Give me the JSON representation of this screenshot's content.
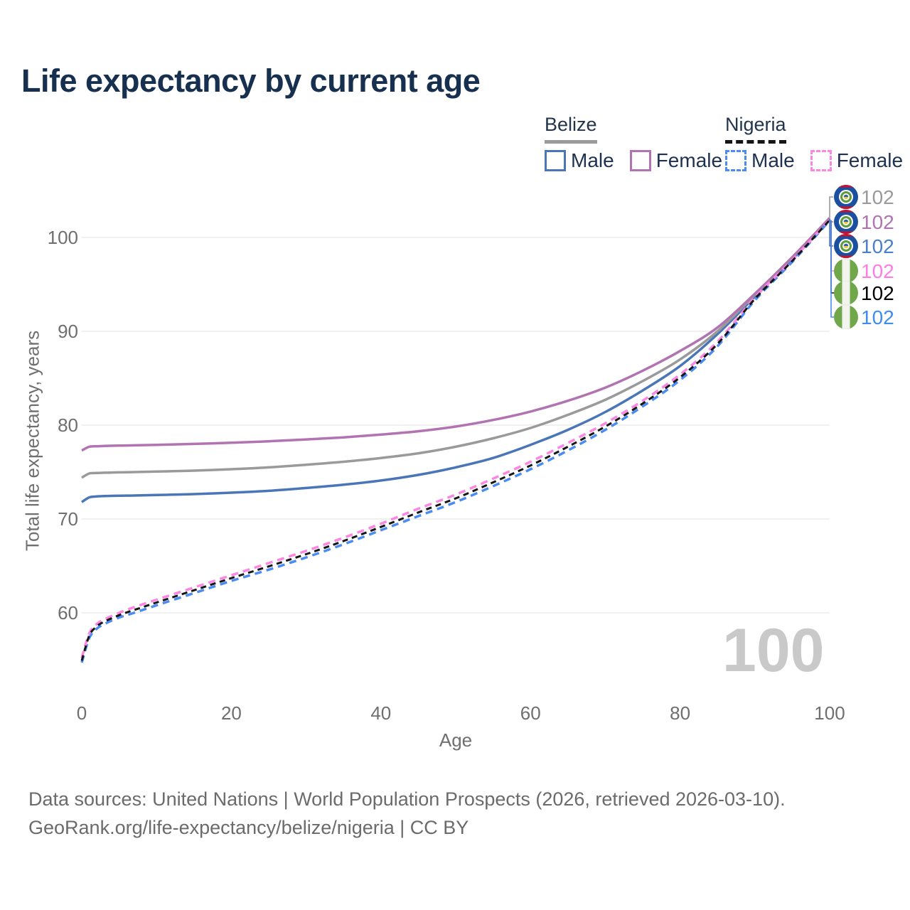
{
  "title": "Life expectancy by current age",
  "legend": {
    "groups": [
      {
        "country": "Belize",
        "line_style": "solid",
        "line_color": "#9a9a9a",
        "items": [
          {
            "label": "Male",
            "color": "#4a76b8",
            "dashed": false
          },
          {
            "label": "Female",
            "color": "#b173b1",
            "dashed": false
          }
        ]
      },
      {
        "country": "Nigeria",
        "line_style": "dashed",
        "line_color": "#151515",
        "items": [
          {
            "label": "Male",
            "color": "#4b8bf4",
            "dashed": true
          },
          {
            "label": "Female",
            "color": "#fb87e3",
            "dashed": true
          }
        ]
      }
    ]
  },
  "chart_data": {
    "type": "line",
    "title": "Life expectancy by current age",
    "xlabel": "Age",
    "ylabel": "Total life expectancy, years",
    "xlim": [
      0,
      100
    ],
    "ylim": [
      54,
      103
    ],
    "x_ticks": [
      0,
      20,
      40,
      60,
      80,
      100
    ],
    "y_ticks": [
      60,
      70,
      80,
      90,
      100
    ],
    "grid": "horizontal",
    "legend_position": "top-right",
    "hover_age_label": "100",
    "series": [
      {
        "name": "Belize Male",
        "country": "Belize",
        "sex": "male",
        "color": "#4a76b8",
        "dash": "solid",
        "points": [
          [
            0,
            71.8
          ],
          [
            1,
            72.3
          ],
          [
            2,
            72.4
          ],
          [
            3,
            72.44
          ],
          [
            5,
            72.48
          ],
          [
            7,
            72.5
          ],
          [
            10,
            72.55
          ],
          [
            15,
            72.65
          ],
          [
            20,
            72.8
          ],
          [
            25,
            73.0
          ],
          [
            30,
            73.3
          ],
          [
            35,
            73.65
          ],
          [
            40,
            74.1
          ],
          [
            45,
            74.7
          ],
          [
            50,
            75.5
          ],
          [
            55,
            76.5
          ],
          [
            60,
            77.9
          ],
          [
            65,
            79.5
          ],
          [
            70,
            81.4
          ],
          [
            75,
            83.7
          ],
          [
            80,
            86.3
          ],
          [
            85,
            89.7
          ],
          [
            90,
            93.7
          ],
          [
            95,
            97.7
          ],
          [
            100,
            102.0
          ]
        ]
      },
      {
        "name": "Belize Both sexes",
        "country": "Belize",
        "sex": "both",
        "color": "#9a9a9a",
        "dash": "solid",
        "points": [
          [
            0,
            74.4
          ],
          [
            1,
            74.85
          ],
          [
            2,
            74.9
          ],
          [
            3,
            74.93
          ],
          [
            5,
            74.97
          ],
          [
            7,
            75.0
          ],
          [
            10,
            75.05
          ],
          [
            15,
            75.15
          ],
          [
            20,
            75.3
          ],
          [
            25,
            75.5
          ],
          [
            30,
            75.78
          ],
          [
            35,
            76.1
          ],
          [
            40,
            76.5
          ],
          [
            45,
            77.0
          ],
          [
            50,
            77.7
          ],
          [
            55,
            78.6
          ],
          [
            60,
            79.7
          ],
          [
            65,
            81.1
          ],
          [
            70,
            82.7
          ],
          [
            75,
            84.7
          ],
          [
            80,
            87.0
          ],
          [
            85,
            90.0
          ],
          [
            90,
            93.9
          ],
          [
            95,
            97.85
          ],
          [
            100,
            102.1
          ]
        ]
      },
      {
        "name": "Belize Female",
        "country": "Belize",
        "sex": "female",
        "color": "#b173b1",
        "dash": "solid",
        "points": [
          [
            0,
            77.3
          ],
          [
            1,
            77.7
          ],
          [
            2,
            77.75
          ],
          [
            3,
            77.78
          ],
          [
            5,
            77.82
          ],
          [
            7,
            77.85
          ],
          [
            10,
            77.9
          ],
          [
            15,
            78.0
          ],
          [
            20,
            78.12
          ],
          [
            25,
            78.28
          ],
          [
            30,
            78.48
          ],
          [
            35,
            78.7
          ],
          [
            40,
            79.0
          ],
          [
            45,
            79.35
          ],
          [
            50,
            79.85
          ],
          [
            55,
            80.55
          ],
          [
            60,
            81.45
          ],
          [
            65,
            82.6
          ],
          [
            70,
            84.0
          ],
          [
            75,
            85.8
          ],
          [
            80,
            87.9
          ],
          [
            85,
            90.4
          ],
          [
            90,
            94.0
          ],
          [
            95,
            97.9
          ],
          [
            100,
            102.05
          ]
        ]
      },
      {
        "name": "Nigeria Male",
        "country": "Nigeria",
        "sex": "male",
        "color": "#4b8bf4",
        "dash": "dashed",
        "points": [
          [
            0,
            54.7
          ],
          [
            1,
            57.3
          ],
          [
            2,
            58.3
          ],
          [
            3,
            58.8
          ],
          [
            5,
            59.5
          ],
          [
            7,
            60.0
          ],
          [
            10,
            60.8
          ],
          [
            15,
            62.1
          ],
          [
            20,
            63.4
          ],
          [
            25,
            64.6
          ],
          [
            30,
            65.9
          ],
          [
            35,
            67.3
          ],
          [
            40,
            68.8
          ],
          [
            45,
            70.3
          ],
          [
            50,
            71.8
          ],
          [
            55,
            73.5
          ],
          [
            60,
            75.3
          ],
          [
            65,
            77.3
          ],
          [
            70,
            79.5
          ],
          [
            75,
            82.0
          ],
          [
            80,
            84.8
          ],
          [
            85,
            88.4
          ],
          [
            90,
            93.3
          ],
          [
            95,
            97.4
          ],
          [
            100,
            101.8
          ]
        ]
      },
      {
        "name": "Nigeria Female",
        "country": "Nigeria",
        "sex": "female",
        "color": "#fb87e3",
        "dash": "dashed",
        "points": [
          [
            0,
            55.2
          ],
          [
            1,
            57.8
          ],
          [
            2,
            58.8
          ],
          [
            3,
            59.3
          ],
          [
            5,
            60.0
          ],
          [
            7,
            60.6
          ],
          [
            10,
            61.4
          ],
          [
            15,
            62.7
          ],
          [
            20,
            64.0
          ],
          [
            25,
            65.3
          ],
          [
            30,
            66.6
          ],
          [
            35,
            68.0
          ],
          [
            40,
            69.5
          ],
          [
            45,
            71.1
          ],
          [
            50,
            72.6
          ],
          [
            55,
            74.3
          ],
          [
            60,
            76.1
          ],
          [
            65,
            78.1
          ],
          [
            70,
            80.2
          ],
          [
            75,
            82.6
          ],
          [
            80,
            85.4
          ],
          [
            85,
            88.9
          ],
          [
            90,
            93.6
          ],
          [
            95,
            97.6
          ],
          [
            100,
            101.9
          ]
        ]
      },
      {
        "name": "Nigeria Both sexes",
        "country": "Nigeria",
        "sex": "both",
        "color": "#161616",
        "dash": "dashed",
        "points": [
          [
            0,
            54.9
          ],
          [
            1,
            57.55
          ],
          [
            2,
            58.55
          ],
          [
            3,
            59.05
          ],
          [
            5,
            59.75
          ],
          [
            7,
            60.3
          ],
          [
            10,
            61.1
          ],
          [
            15,
            62.4
          ],
          [
            20,
            63.7
          ],
          [
            25,
            64.95
          ],
          [
            30,
            66.25
          ],
          [
            35,
            67.65
          ],
          [
            40,
            69.15
          ],
          [
            45,
            70.7
          ],
          [
            50,
            72.2
          ],
          [
            55,
            73.9
          ],
          [
            60,
            75.7
          ],
          [
            65,
            77.7
          ],
          [
            70,
            79.85
          ],
          [
            75,
            82.3
          ],
          [
            80,
            85.1
          ],
          [
            85,
            88.65
          ],
          [
            90,
            93.45
          ],
          [
            95,
            97.5
          ],
          [
            100,
            101.85
          ]
        ]
      }
    ],
    "end_labels": [
      {
        "value": "102",
        "color": "#9a9a9a",
        "flag": "belize",
        "series": "Belize Both sexes"
      },
      {
        "value": "102",
        "color": "#b173b1",
        "flag": "belize",
        "series": "Belize Female"
      },
      {
        "value": "102",
        "color": "#4a7fc9",
        "flag": "belize",
        "series": "Belize Male"
      },
      {
        "value": "102",
        "color": "#fd7de6",
        "flag": "nigeria",
        "series": "Nigeria Female"
      },
      {
        "value": "102",
        "color": "#000000",
        "flag": "nigeria",
        "series": "Nigeria Both sexes"
      },
      {
        "value": "102",
        "color": "#3e8bf2",
        "flag": "nigeria",
        "series": "Nigeria Male"
      }
    ]
  },
  "footer": {
    "line1": "Data sources: United Nations | World Population Prospects (2026, retrieved 2026-03-10).",
    "line2": "GeoRank.org/life-expectancy/belize/nigeria | CC BY"
  }
}
